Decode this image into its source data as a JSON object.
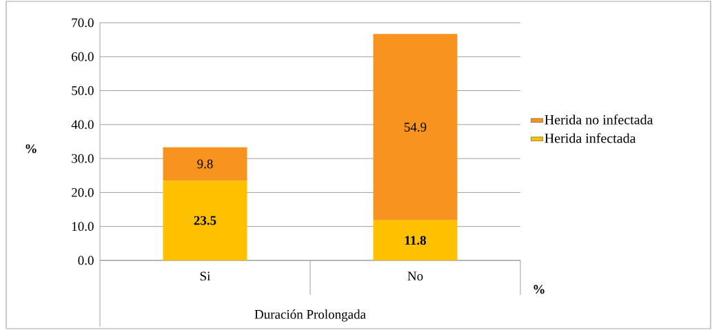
{
  "chart_data": {
    "type": "bar",
    "stacked": true,
    "xlabel": "Duración Prolongada",
    "ylabel": "%",
    "annotations": [
      "%"
    ],
    "categories": [
      "Si",
      "No"
    ],
    "series": [
      {
        "name": "Herida infectada",
        "color": "#ffc000",
        "values": [
          23.5,
          11.8
        ]
      },
      {
        "name": "Herida no infectada",
        "color": "#f7931e",
        "values": [
          9.8,
          54.9
        ]
      }
    ],
    "ylim": [
      0,
      70
    ],
    "yticks": [
      {
        "value": 0,
        "label": "0.0"
      },
      {
        "value": 10,
        "label": "10.0"
      },
      {
        "value": 20,
        "label": "20.0"
      },
      {
        "value": 30,
        "label": "30.0"
      },
      {
        "value": 40,
        "label": "40.0"
      },
      {
        "value": 50,
        "label": "50.0"
      },
      {
        "value": 60,
        "label": "60.0"
      },
      {
        "value": 70,
        "label": "70.0"
      }
    ],
    "grid": "y",
    "legend": "right",
    "data_labels": true
  }
}
